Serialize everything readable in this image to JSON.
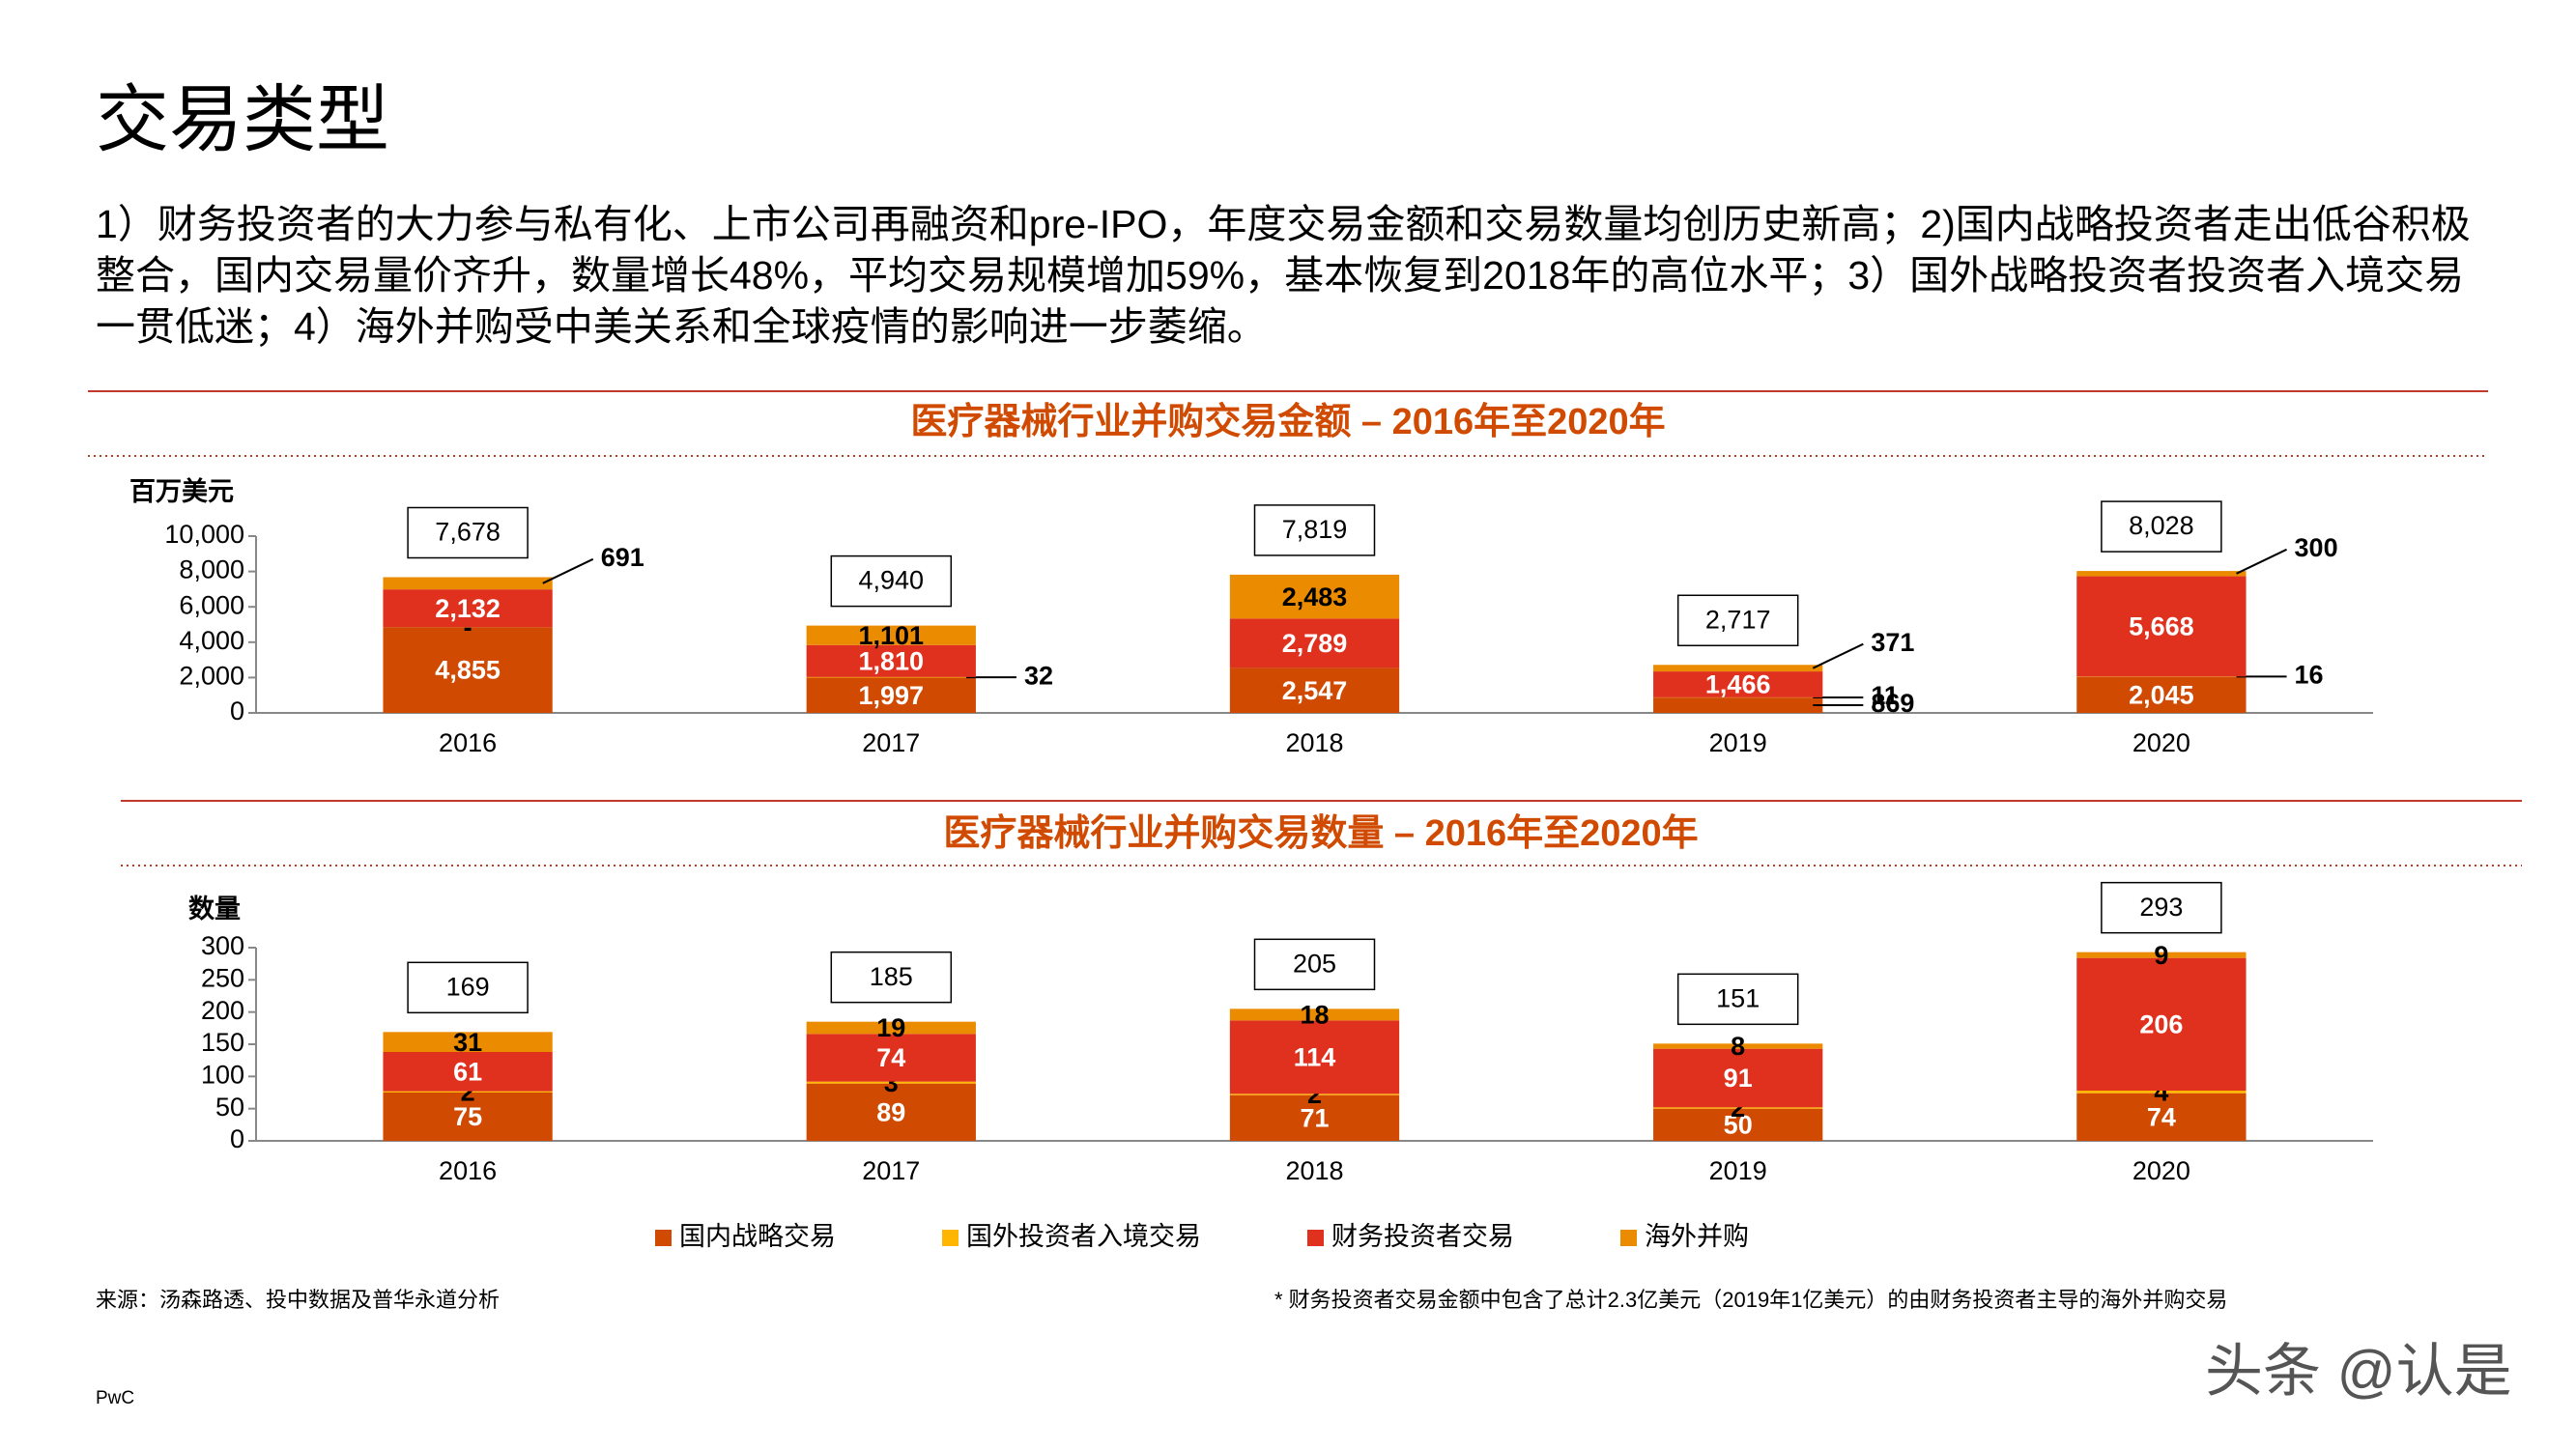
{
  "title": "交易类型",
  "summary": "1）财务投资者的大力参与私有化、上市公司再融资和pre-IPO，年度交易金额和交易数量均创历史新高；2)国内战略投资者走出低谷积极整合，国内交易量价齐升，数量增长48%，平均交易规模增加59%，基本恢复到2018年的高位水平；3）国外战略投资者投资者入境交易一贯低迷；4）海外并购受中美关系和全球疫情的影响进一步萎缩。",
  "chart_data": [
    {
      "type": "bar",
      "stacked": true,
      "callouts": true,
      "title": "医疗器械行业并购交易金额 – 2016年至2020年",
      "y_label": "百万美元",
      "categories": [
        "2016",
        "2017",
        "2018",
        "2019",
        "2020"
      ],
      "ylim": [
        0,
        10000
      ],
      "yticks": [
        0,
        {
          "value": 2000,
          "label": "2,000"
        },
        {
          "value": 4000,
          "label": "4,000"
        },
        {
          "value": 6000,
          "label": "6,000"
        },
        {
          "value": 8000,
          "label": "8,000"
        },
        {
          "value": 10000,
          "label": "10,000"
        }
      ],
      "series": [
        {
          "color": "#d04a02",
          "label_color": "#ffffff",
          "values": [
            4855,
            1997,
            2547,
            869,
            2045
          ],
          "value_labels": [
            "4,855",
            "1,997",
            "2,547",
            "869",
            "2,045"
          ]
        },
        {
          "color": "#ffb600",
          "label_color": "#000000",
          "values": [
            0,
            32,
            null,
            11,
            16
          ],
          "value_labels": [
            "-",
            "32",
            null,
            "11",
            "16"
          ]
        },
        {
          "color": "#e0301e",
          "label_color": "#ffffff",
          "values": [
            2132,
            1810,
            2789,
            1466,
            5668
          ],
          "value_labels": [
            "2,132",
            "1,810",
            "2,789",
            "1,466",
            "5,668"
          ]
        },
        {
          "color": "#eb8c00",
          "label_color": "#000000",
          "values": [
            691,
            1101,
            2483,
            371,
            300
          ],
          "value_labels": [
            "691",
            "1,101",
            "2,483",
            "371",
            "300"
          ]
        }
      ],
      "totals": {
        "values": [
          7678,
          4940,
          7819,
          2717,
          8028
        ],
        "value_labels": [
          "7,678",
          "4,940",
          "7,819",
          "2,717",
          "8,028"
        ]
      }
    },
    {
      "type": "bar",
      "stacked": true,
      "callouts": false,
      "legend": "bottom",
      "title": "医疗器械行业并购交易数量 – 2016年至2020年",
      "y_label": "数量",
      "categories": [
        "2016",
        "2017",
        "2018",
        "2019",
        "2020"
      ],
      "ylim": [
        0,
        300
      ],
      "yticks": [
        0,
        50,
        100,
        150,
        200,
        250,
        300
      ],
      "series": [
        {
          "name": "国内战略交易",
          "color": "#d04a02",
          "label_color": "#ffffff",
          "values": [
            75,
            89,
            71,
            50,
            74
          ]
        },
        {
          "name": "国外投资者入境交易",
          "color": "#ffb600",
          "label_color": "#000000",
          "values": [
            2,
            3,
            2,
            2,
            4
          ]
        },
        {
          "name": "财务投资者交易",
          "color": "#e0301e",
          "label_color": "#ffffff",
          "values": [
            61,
            74,
            114,
            91,
            206
          ]
        },
        {
          "name": "海外并购",
          "color": "#eb8c00",
          "label_color": "#000000",
          "values": [
            31,
            19,
            18,
            8,
            9
          ]
        }
      ],
      "totals": {
        "values": [
          169,
          185,
          205,
          151,
          293
        ]
      }
    }
  ],
  "source": "来源：汤森路透、投中数据及普华永道分析",
  "footnote": "* 财务投资者交易金额中包含了总计2.3亿美元（2019年1亿美元）的由财务投资者主导的海外并购交易",
  "brand": "PwC",
  "watermark": "头条 @认是"
}
